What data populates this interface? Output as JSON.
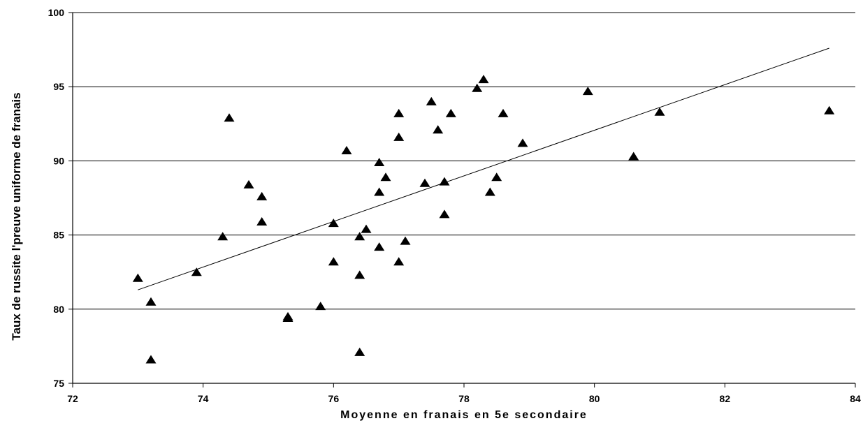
{
  "chart_data": {
    "type": "scatter",
    "title": "",
    "xlabel": "Moyenne en franais en 5e secondaire",
    "ylabel": "Taux de russite  l'preuve uniforme de franais",
    "xlim": [
      72,
      84
    ],
    "ylim": [
      75,
      100
    ],
    "xticks": [
      72,
      74,
      76,
      78,
      80,
      82,
      84
    ],
    "yticks": [
      75,
      80,
      85,
      90,
      95,
      100
    ],
    "grid": "horizontal",
    "legend": "none",
    "marker": "triangle",
    "colors": {
      "marker": "#000000",
      "line": "#000000",
      "grid": "#000000"
    },
    "series": [
      {
        "points": [
          [
            73.0,
            82.1
          ],
          [
            73.2,
            80.5
          ],
          [
            73.2,
            76.6
          ],
          [
            73.9,
            82.5
          ],
          [
            74.3,
            84.9
          ],
          [
            74.4,
            92.9
          ],
          [
            74.7,
            88.4
          ],
          [
            74.9,
            87.6
          ],
          [
            74.9,
            85.9
          ],
          [
            75.3,
            79.5
          ],
          [
            75.3,
            79.4
          ],
          [
            75.8,
            80.2
          ],
          [
            76.0,
            85.8
          ],
          [
            76.0,
            83.2
          ],
          [
            76.2,
            90.7
          ],
          [
            76.4,
            84.9
          ],
          [
            76.4,
            82.3
          ],
          [
            76.4,
            77.1
          ],
          [
            76.5,
            85.4
          ],
          [
            76.7,
            89.9
          ],
          [
            76.7,
            87.9
          ],
          [
            76.7,
            84.2
          ],
          [
            76.8,
            88.9
          ],
          [
            77.0,
            93.2
          ],
          [
            77.0,
            91.6
          ],
          [
            77.0,
            83.2
          ],
          [
            77.1,
            84.6
          ],
          [
            77.4,
            88.5
          ],
          [
            77.5,
            94.0
          ],
          [
            77.6,
            92.1
          ],
          [
            77.7,
            88.6
          ],
          [
            77.7,
            86.4
          ],
          [
            77.8,
            93.2
          ],
          [
            78.2,
            94.9
          ],
          [
            78.3,
            95.5
          ],
          [
            78.4,
            87.9
          ],
          [
            78.5,
            88.9
          ],
          [
            78.6,
            93.2
          ],
          [
            78.9,
            91.2
          ],
          [
            79.9,
            94.7
          ],
          [
            80.6,
            90.3
          ],
          [
            81.0,
            93.3
          ],
          [
            83.6,
            93.4
          ]
        ]
      }
    ],
    "trendline": {
      "x": [
        73.0,
        83.6
      ],
      "y": [
        81.3,
        97.6
      ]
    }
  }
}
